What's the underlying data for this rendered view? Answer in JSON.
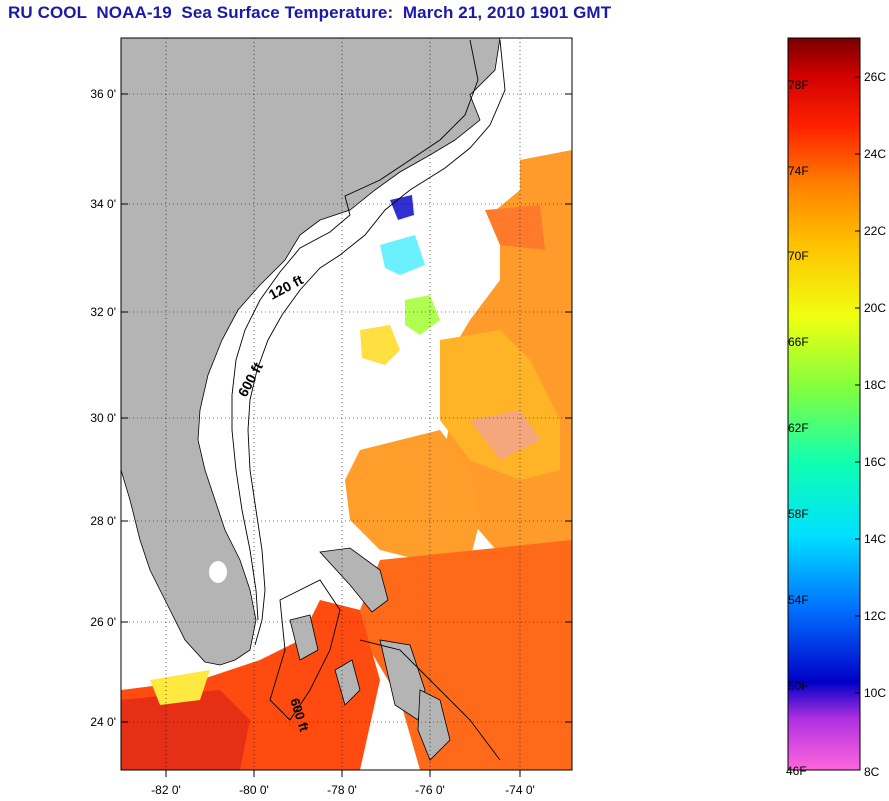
{
  "title": "RU COOL  NOAA-19  Sea Surface Temperature:  March 21, 2010 1901 GMT",
  "map": {
    "lat_labels": [
      "36 0'",
      "34 0'",
      "32 0'",
      "30 0'",
      "28 0'",
      "26 0'",
      "24 0'"
    ],
    "lon_labels": [
      "-82 0'",
      "-80 0'",
      "-78 0'",
      "-76 0'",
      "-74 0'"
    ],
    "contour_labels": [
      "120 ft",
      "600 ft",
      "600 ft"
    ]
  },
  "colorbar": {
    "fahrenheit_labels": [
      "78F",
      "74F",
      "70F",
      "66F",
      "62F",
      "58F",
      "54F",
      "50F",
      "46F"
    ],
    "celsius_labels": [
      "26C",
      "24C",
      "22C",
      "20C",
      "18C",
      "16C",
      "14C",
      "12C",
      "10C",
      "8C"
    ]
  },
  "colors": {
    "title": "#1a1aa8",
    "land": "#b4b4b4",
    "sst_warm": "#ff5a14",
    "sst_mid": "#ff9b1e",
    "sst_cool": "#ffd21e"
  }
}
